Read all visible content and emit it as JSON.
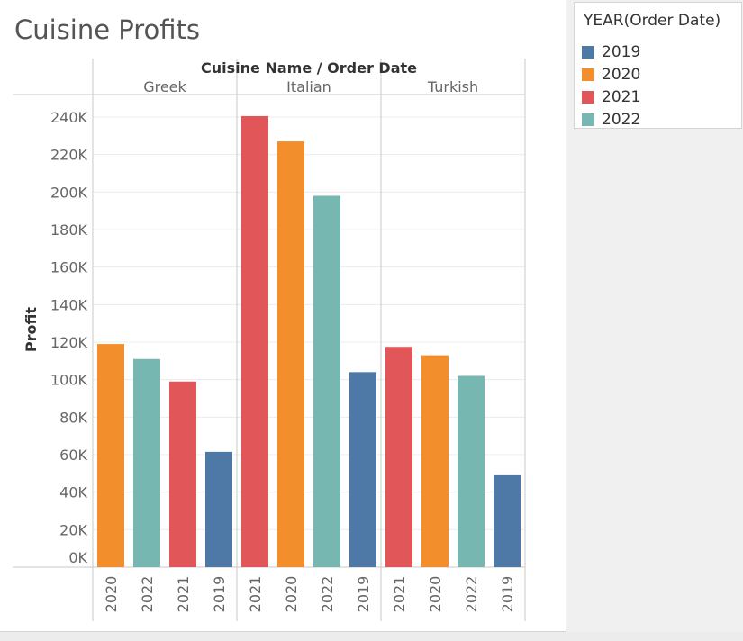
{
  "title": "Cuisine Profits",
  "legend": {
    "title": "YEAR(Order Date)",
    "items": [
      {
        "label": "2019",
        "color": "#4e79a7"
      },
      {
        "label": "2020",
        "color": "#f28e2b"
      },
      {
        "label": "2021",
        "color": "#e15759"
      },
      {
        "label": "2022",
        "color": "#76b7b2"
      }
    ]
  },
  "chart_data": {
    "type": "bar",
    "title": "Cuisine Profits",
    "xlabel": "Cuisine Name / Order Date",
    "ylabel": "Profit",
    "ylim": [
      0,
      240000
    ],
    "yticks": [
      0,
      20000,
      40000,
      60000,
      80000,
      100000,
      120000,
      140000,
      160000,
      180000,
      200000,
      220000,
      240000
    ],
    "ytick_labels": [
      "0K",
      "20K",
      "40K",
      "60K",
      "80K",
      "100K",
      "120K",
      "140K",
      "160K",
      "180K",
      "200K",
      "220K",
      "240K"
    ],
    "grid": true,
    "legend_position": "right",
    "groups": [
      {
        "name": "Greek",
        "bars": [
          {
            "year": "2020",
            "value": 119000,
            "color": "#f28e2b"
          },
          {
            "year": "2022",
            "value": 111000,
            "color": "#76b7b2"
          },
          {
            "year": "2021",
            "value": 99000,
            "color": "#e15759"
          },
          {
            "year": "2019",
            "value": 61500,
            "color": "#4e79a7"
          }
        ]
      },
      {
        "name": "Italian",
        "bars": [
          {
            "year": "2021",
            "value": 240500,
            "color": "#e15759"
          },
          {
            "year": "2020",
            "value": 227000,
            "color": "#f28e2b"
          },
          {
            "year": "2022",
            "value": 198000,
            "color": "#76b7b2"
          },
          {
            "year": "2019",
            "value": 104000,
            "color": "#4e79a7"
          }
        ]
      },
      {
        "name": "Turkish",
        "bars": [
          {
            "year": "2021",
            "value": 117500,
            "color": "#e15759"
          },
          {
            "year": "2020",
            "value": 113000,
            "color": "#f28e2b"
          },
          {
            "year": "2022",
            "value": 102000,
            "color": "#76b7b2"
          },
          {
            "year": "2019",
            "value": 49000,
            "color": "#4e79a7"
          }
        ]
      }
    ]
  }
}
